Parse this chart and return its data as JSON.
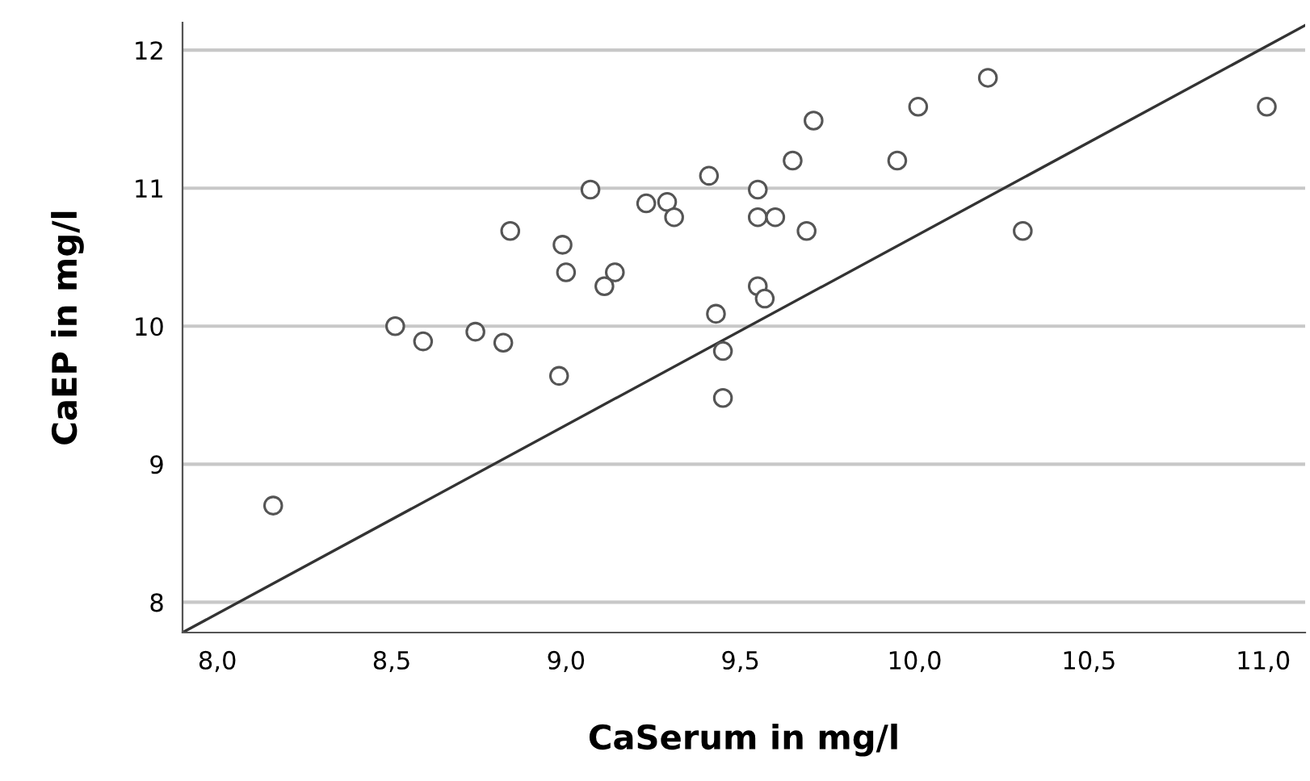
{
  "chart_data": {
    "type": "scatter",
    "xlabel": "CaSerum in mg/l",
    "ylabel": "CaEP in mg/l",
    "xlim": [
      7.9,
      11.12
    ],
    "ylim": [
      7.78,
      12.2
    ],
    "xticks": [
      {
        "value": 8,
        "label": "8,0"
      },
      {
        "value": 8.5,
        "label": "8,5"
      },
      {
        "value": 9,
        "label": "9,0"
      },
      {
        "value": 9.5,
        "label": "9,5"
      },
      {
        "value": 10,
        "label": "10,0"
      },
      {
        "value": 10.5,
        "label": "10,5"
      },
      {
        "value": 11,
        "label": "11,0"
      }
    ],
    "yticks": [
      8,
      9,
      10,
      11,
      12
    ],
    "grid": "y",
    "series": [
      {
        "marker": "circle",
        "color": "#555555",
        "x": [
          8.16,
          8.51,
          8.59,
          8.74,
          8.82,
          8.98,
          8.84,
          8.99,
          9.0,
          9.14,
          9.11,
          9.07,
          9.23,
          9.29,
          9.31,
          9.41,
          9.43,
          9.45,
          9.45,
          9.55,
          9.55,
          9.6,
          9.69,
          9.65,
          9.71,
          9.55,
          9.57,
          9.95,
          10.01,
          10.21,
          10.31,
          11.01
        ],
        "values": [
          8.7,
          10.0,
          9.89,
          9.96,
          9.88,
          9.64,
          10.69,
          10.59,
          10.39,
          10.39,
          10.29,
          10.99,
          10.89,
          10.9,
          10.79,
          11.09,
          10.09,
          9.82,
          9.48,
          10.99,
          10.79,
          10.79,
          10.69,
          11.2,
          11.49,
          10.29,
          10.2,
          11.2,
          11.59,
          11.8,
          10.69,
          11.59
        ]
      },
      {
        "type": "line",
        "color": "#333333",
        "x": [
          7.9,
          11.12
        ],
        "values": [
          7.78,
          12.18
        ]
      }
    ]
  }
}
